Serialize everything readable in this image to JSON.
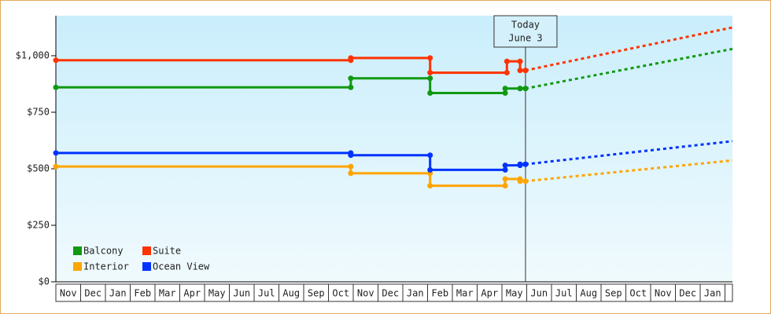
{
  "chart_data": {
    "type": "step-line",
    "categories": [
      "Nov",
      "Dec",
      "Jan",
      "Feb",
      "Mar",
      "Apr",
      "May",
      "Jun",
      "Jul",
      "Aug",
      "Sep",
      "Oct",
      "Nov",
      "Dec",
      "Jan",
      "Feb",
      "Mar",
      "Apr",
      "May",
      "Jun",
      "Jul",
      "Aug",
      "Sep",
      "Oct",
      "Nov",
      "Dec",
      "Jan"
    ],
    "xlim": [
      0,
      27.3
    ],
    "ylim": [
      0,
      1177
    ],
    "yticks": [
      {
        "value": 0,
        "label": "$0"
      },
      {
        "value": 250,
        "label": "$250"
      },
      {
        "value": 500,
        "label": "$500"
      },
      {
        "value": 750,
        "label": "$750"
      },
      {
        "value": 1000,
        "label": "$1,000"
      }
    ],
    "annotation": {
      "x": 18.95,
      "lines": [
        "Today",
        "June 3"
      ]
    },
    "legend": "lower left",
    "series": [
      {
        "name": "Balcony",
        "color": "#119911",
        "x": [
          0,
          11.9,
          15.1,
          18.13,
          18.73,
          18.95
        ],
        "values": [
          860,
          900,
          835,
          855,
          855,
          855
        ],
        "forecast_x": [
          18.95,
          27.3
        ],
        "forecast_values": [
          855,
          1030
        ]
      },
      {
        "name": "Suite",
        "color": "#ff3300",
        "x": [
          0,
          11.9,
          15.1,
          18.2,
          18.73,
          18.95
        ],
        "values": [
          980,
          990,
          925,
          975,
          935,
          935
        ],
        "forecast_x": [
          18.95,
          27.3
        ],
        "forecast_values": [
          935,
          1125
        ]
      },
      {
        "name": "Interior",
        "color": "#ffa500",
        "x": [
          0,
          11.9,
          15.1,
          18.13,
          18.73,
          18.95
        ],
        "values": [
          510,
          480,
          425,
          455,
          445,
          445
        ],
        "forecast_x": [
          18.95,
          27.3
        ],
        "forecast_values": [
          445,
          537
        ]
      },
      {
        "name": "Ocean View",
        "color": "#0033ff",
        "x": [
          0,
          11.9,
          15.1,
          18.13,
          18.73,
          18.95
        ],
        "values": [
          570,
          560,
          495,
          515,
          520,
          520
        ],
        "forecast_x": [
          18.95,
          27.3
        ],
        "forecast_values": [
          520,
          622
        ]
      }
    ]
  }
}
